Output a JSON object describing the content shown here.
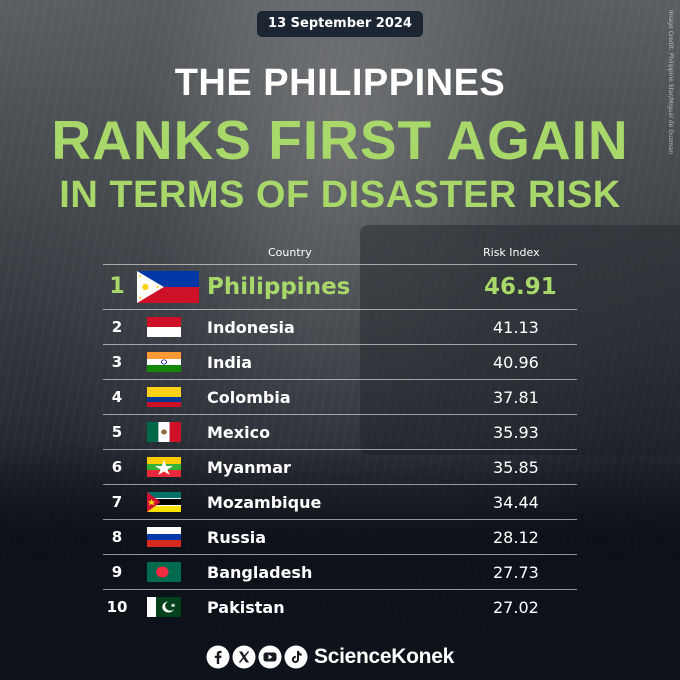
{
  "date": "13 September 2024",
  "image_credit": "Image Credit: Philippine Star/Miguel de Guzman",
  "title": {
    "line1": "THE PHILIPPINES",
    "line2": "RANKS FIRST AGAIN",
    "line3": "IN TERMS OF DISASTER RISK"
  },
  "table": {
    "header_country": "Country",
    "header_risk": "Risk Index",
    "rows": [
      {
        "rank": "1",
        "country": "Philippines",
        "risk": "46.91",
        "flag": "philippines-flag"
      },
      {
        "rank": "2",
        "country": "Indonesia",
        "risk": "41.13",
        "flag": "indonesia-flag"
      },
      {
        "rank": "3",
        "country": "India",
        "risk": "40.96",
        "flag": "india-flag"
      },
      {
        "rank": "4",
        "country": "Colombia",
        "risk": "37.81",
        "flag": "colombia-flag"
      },
      {
        "rank": "5",
        "country": "Mexico",
        "risk": "35.93",
        "flag": "mexico-flag"
      },
      {
        "rank": "6",
        "country": "Myanmar",
        "risk": "35.85",
        "flag": "myanmar-flag"
      },
      {
        "rank": "7",
        "country": "Mozambique",
        "risk": "34.44",
        "flag": "mozambique-flag"
      },
      {
        "rank": "8",
        "country": "Russia",
        "risk": "28.12",
        "flag": "russia-flag"
      },
      {
        "rank": "9",
        "country": "Bangladesh",
        "risk": "27.73",
        "flag": "bangladesh-flag"
      },
      {
        "rank": "10",
        "country": "Pakistan",
        "risk": "27.02",
        "flag": "pakistan-flag"
      }
    ]
  },
  "footer": {
    "brand": "ScienceKonek",
    "icons": [
      "facebook-icon",
      "x-icon",
      "youtube-icon",
      "tiktok-icon"
    ]
  },
  "colors": {
    "accent": "#a8d86a",
    "date_badge": "#1c2633"
  }
}
